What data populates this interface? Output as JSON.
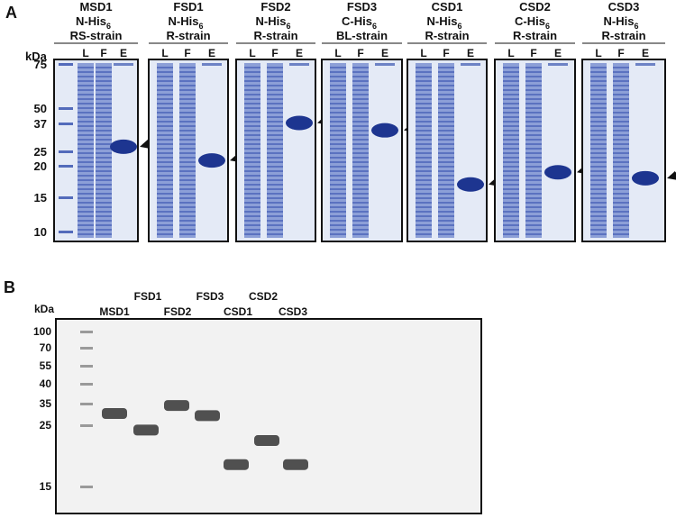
{
  "panel_a": {
    "label": "A",
    "kda_label": "kDa",
    "markers": [
      "75",
      "50",
      "37",
      "25",
      "20",
      "15",
      "10"
    ],
    "lane_letters": [
      "L",
      "F",
      "E"
    ],
    "gels": [
      {
        "name": "MSD1",
        "tag": "N-His",
        "strain": "RS-strain",
        "elution_band_kda": 27
      },
      {
        "name": "FSD1",
        "tag": "N-His",
        "strain": "R-strain",
        "elution_band_kda": 22
      },
      {
        "name": "FSD2",
        "tag": "N-His",
        "strain": "R-strain",
        "elution_band_kda": 38
      },
      {
        "name": "FSD3",
        "tag": "C-His",
        "strain": "BL-strain",
        "elution_band_kda": 34
      },
      {
        "name": "CSD1",
        "tag": "N-His",
        "strain": "R-strain",
        "elution_band_kda": 17
      },
      {
        "name": "CSD2",
        "tag": "C-His",
        "strain": "R-strain",
        "elution_band_kda": 19
      },
      {
        "name": "CSD3",
        "tag": "N-His",
        "strain": "R-strain",
        "elution_band_kda": 18
      }
    ],
    "subscript": "6",
    "colors": {
      "gel_bg": "#e4eaf6",
      "band": "#3a55b0",
      "band_dark": "#1d3590",
      "border": "#111111"
    }
  },
  "panel_b": {
    "label": "B",
    "kda_label": "kDa",
    "markers": [
      "100",
      "70",
      "55",
      "40",
      "35",
      "25",
      "15"
    ],
    "lanes_top": [
      "FSD1",
      "FSD3",
      "CSD2"
    ],
    "lanes_bottom": [
      "MSD1",
      "FSD2",
      "CSD1",
      "CSD3"
    ],
    "bands": [
      {
        "name": "MSD1",
        "kda": 30
      },
      {
        "name": "FSD1",
        "kda": 24
      },
      {
        "name": "FSD2",
        "kda": 34
      },
      {
        "name": "FSD3",
        "kda": 29
      },
      {
        "name": "CSD1",
        "kda": 18
      },
      {
        "name": "CSD2",
        "kda": 22
      },
      {
        "name": "CSD3",
        "kda": 18
      }
    ],
    "colors": {
      "gel_bg": "#f2f2f2",
      "band": "#505050"
    }
  }
}
